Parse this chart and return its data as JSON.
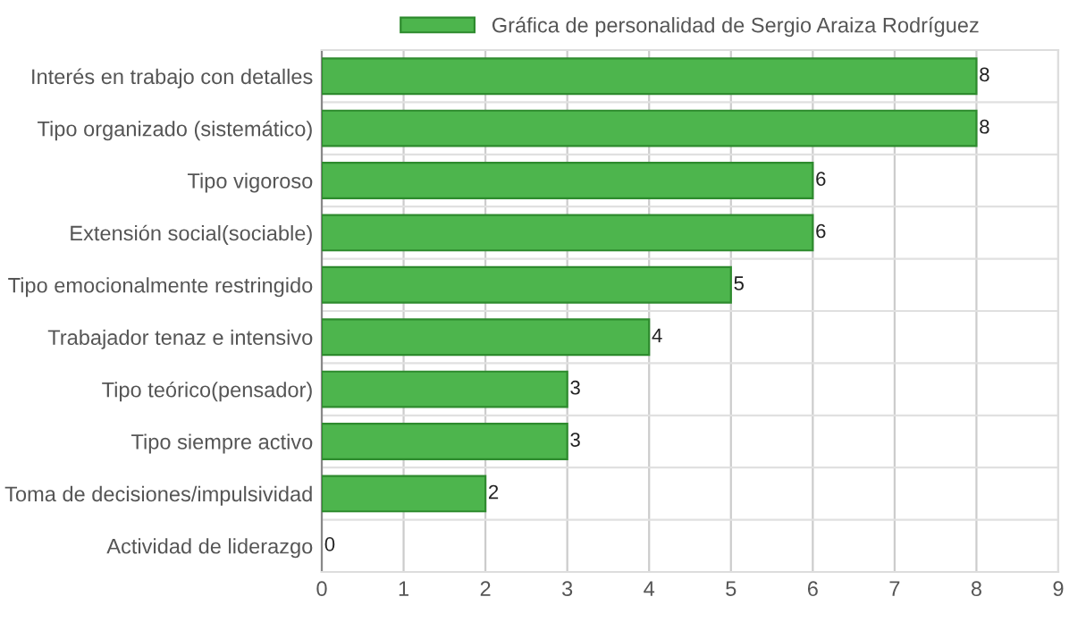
{
  "chart_data": {
    "type": "bar",
    "orientation": "horizontal",
    "categories": [
      "Interés en trabajo con detalles",
      "Tipo organizado (sistemático)",
      "Tipo vigoroso",
      "Extensión social(sociable)",
      "Tipo emocionalmente restringido",
      "Trabajador tenaz e intensivo",
      "Tipo teórico(pensador)",
      "Tipo siempre activo",
      "Toma de decisiones/impulsividad",
      "Actividad de liderazgo"
    ],
    "series": [
      {
        "name": "Gráfica de personalidad de Sergio Araiza Rodríguez",
        "color": "#4db54d",
        "values": [
          8,
          8,
          6,
          6,
          5,
          4,
          3,
          3,
          2,
          0
        ]
      }
    ],
    "xlim": [
      0,
      9
    ],
    "xticks": [
      0,
      1,
      2,
      3,
      4,
      5,
      6,
      7,
      8,
      9
    ],
    "grid": true,
    "legend": "top",
    "data_labels": true
  }
}
